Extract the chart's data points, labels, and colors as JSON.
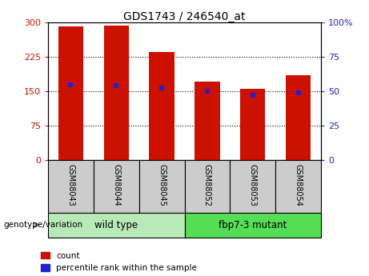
{
  "title": "GDS1743 / 246540_at",
  "categories": [
    "GSM88043",
    "GSM88044",
    "GSM88045",
    "GSM88052",
    "GSM88053",
    "GSM88054"
  ],
  "count_values": [
    290,
    292,
    235,
    170,
    155,
    185
  ],
  "percentile_values": [
    54.5,
    54,
    52.5,
    50,
    47,
    49
  ],
  "ylim_left": [
    0,
    300
  ],
  "ylim_right": [
    0,
    100
  ],
  "yticks_left": [
    0,
    75,
    150,
    225,
    300
  ],
  "ytick_labels_left": [
    "0",
    "75",
    "150",
    "225",
    "300"
  ],
  "yticks_right": [
    0,
    25,
    50,
    75,
    100
  ],
  "ytick_labels_right": [
    "0",
    "25",
    "50",
    "75",
    "100%"
  ],
  "dotted_gridlines": [
    75,
    150,
    225
  ],
  "bar_color": "#cc1100",
  "percentile_color": "#2222cc",
  "groups": [
    {
      "label": "wild type",
      "span": [
        0,
        3
      ],
      "color": "#b8eab8"
    },
    {
      "label": "fbp7-3 mutant",
      "span": [
        3,
        6
      ],
      "color": "#55dd55"
    }
  ],
  "genotype_label": "genotype/variation",
  "legend_count": "count",
  "legend_percentile": "percentile rank within the sample",
  "bar_width": 0.55,
  "tick_color_left": "#cc1100",
  "tick_color_right": "#2222cc",
  "label_box_color": "#cccccc",
  "fig_width": 4.61,
  "fig_height": 3.45,
  "dpi": 100
}
